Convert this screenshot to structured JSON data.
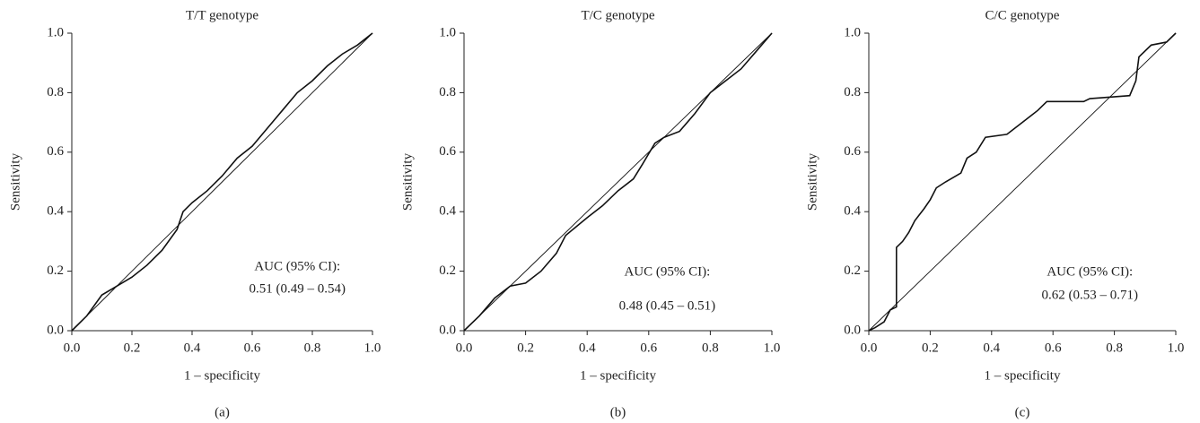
{
  "chart_data": [
    {
      "type": "line",
      "title": "T/T genotype",
      "xlabel": "1 – specificity",
      "ylabel": "Sensitivity",
      "caption": "(a)",
      "annotations": [
        "AUC (95% CI):",
        "0.51 (0.49 – 0.54)"
      ],
      "xlim": [
        0,
        1
      ],
      "ylim": [
        0,
        1
      ],
      "xticks": [
        {
          "value": 0,
          "label": "0.0"
        },
        0.2,
        0.4,
        0.6,
        0.8,
        {
          "value": 1,
          "label": "1.0"
        }
      ],
      "yticks": [
        {
          "value": 0,
          "label": "0.0"
        },
        0.2,
        0.4,
        0.6,
        0.8,
        {
          "value": 1,
          "label": "1.0"
        }
      ],
      "series": [
        {
          "color": "#111111",
          "x": [
            0,
            0.05,
            0.1,
            0.15,
            0.2,
            0.25,
            0.3,
            0.35,
            0.37,
            0.4,
            0.45,
            0.5,
            0.55,
            0.6,
            0.65,
            0.7,
            0.75,
            0.8,
            0.85,
            0.9,
            0.95,
            1
          ],
          "values": [
            0,
            0.05,
            0.12,
            0.15,
            0.18,
            0.22,
            0.27,
            0.34,
            0.4,
            0.43,
            0.47,
            0.52,
            0.58,
            0.62,
            0.68,
            0.74,
            0.8,
            0.84,
            0.89,
            0.93,
            0.96,
            1
          ]
        },
        {
          "color": "#111111",
          "x": [
            0,
            1
          ],
          "values": [
            0,
            1
          ]
        }
      ]
    },
    {
      "type": "line",
      "title": "T/C genotype",
      "xlabel": "1 – specificity",
      "ylabel": "Sensitivity",
      "caption": "(b)",
      "annotations": [
        "AUC (95% CI):",
        "0.48 (0.45 – 0.51)"
      ],
      "xlim": [
        0,
        1
      ],
      "ylim": [
        0,
        1
      ],
      "xticks": [
        {
          "value": 0,
          "label": "0.0"
        },
        0.2,
        0.4,
        0.6,
        0.8,
        {
          "value": 1,
          "label": "1.0"
        }
      ],
      "yticks": [
        {
          "value": 0,
          "label": "0.0"
        },
        0.2,
        0.4,
        0.6,
        0.8,
        {
          "value": 1,
          "label": "1.0"
        }
      ],
      "series": [
        {
          "color": "#111111",
          "x": [
            0,
            0.05,
            0.1,
            0.15,
            0.2,
            0.25,
            0.3,
            0.33,
            0.4,
            0.45,
            0.5,
            0.55,
            0.58,
            0.62,
            0.65,
            0.7,
            0.75,
            0.8,
            0.85,
            0.9,
            0.95,
            1
          ],
          "values": [
            0,
            0.05,
            0.11,
            0.15,
            0.16,
            0.2,
            0.26,
            0.32,
            0.38,
            0.42,
            0.47,
            0.51,
            0.56,
            0.63,
            0.65,
            0.67,
            0.73,
            0.8,
            0.84,
            0.88,
            0.94,
            1
          ]
        },
        {
          "color": "#111111",
          "x": [
            0,
            1
          ],
          "values": [
            0,
            1
          ]
        }
      ]
    },
    {
      "type": "line",
      "title": "C/C genotype",
      "xlabel": "1 – specificity",
      "ylabel": "Sensitivity",
      "caption": "(c)",
      "annotations": [
        "AUC (95% CI):",
        "0.62 (0.53 – 0.71)"
      ],
      "xlim": [
        0,
        1
      ],
      "ylim": [
        0,
        1
      ],
      "xticks": [
        {
          "value": 0,
          "label": "0.0"
        },
        0.2,
        0.4,
        0.6,
        0.8,
        {
          "value": 1,
          "label": "1.0"
        }
      ],
      "yticks": [
        {
          "value": 0,
          "label": "0.0"
        },
        0.2,
        0.4,
        0.6,
        0.8,
        {
          "value": 1,
          "label": "1.0"
        }
      ],
      "series": [
        {
          "color": "#111111",
          "x": [
            0,
            0.02,
            0.05,
            0.07,
            0.09,
            0.09,
            0.11,
            0.13,
            0.15,
            0.18,
            0.2,
            0.22,
            0.25,
            0.3,
            0.32,
            0.35,
            0.38,
            0.45,
            0.5,
            0.55,
            0.58,
            0.7,
            0.72,
            0.85,
            0.87,
            0.88,
            0.92,
            0.97,
            1
          ],
          "values": [
            0,
            0.01,
            0.03,
            0.07,
            0.08,
            0.28,
            0.3,
            0.33,
            0.37,
            0.41,
            0.44,
            0.48,
            0.5,
            0.53,
            0.58,
            0.6,
            0.65,
            0.66,
            0.7,
            0.74,
            0.77,
            0.77,
            0.78,
            0.79,
            0.84,
            0.92,
            0.96,
            0.97,
            1
          ]
        },
        {
          "color": "#111111",
          "x": [
            0,
            1
          ],
          "values": [
            0,
            1
          ]
        }
      ]
    }
  ]
}
